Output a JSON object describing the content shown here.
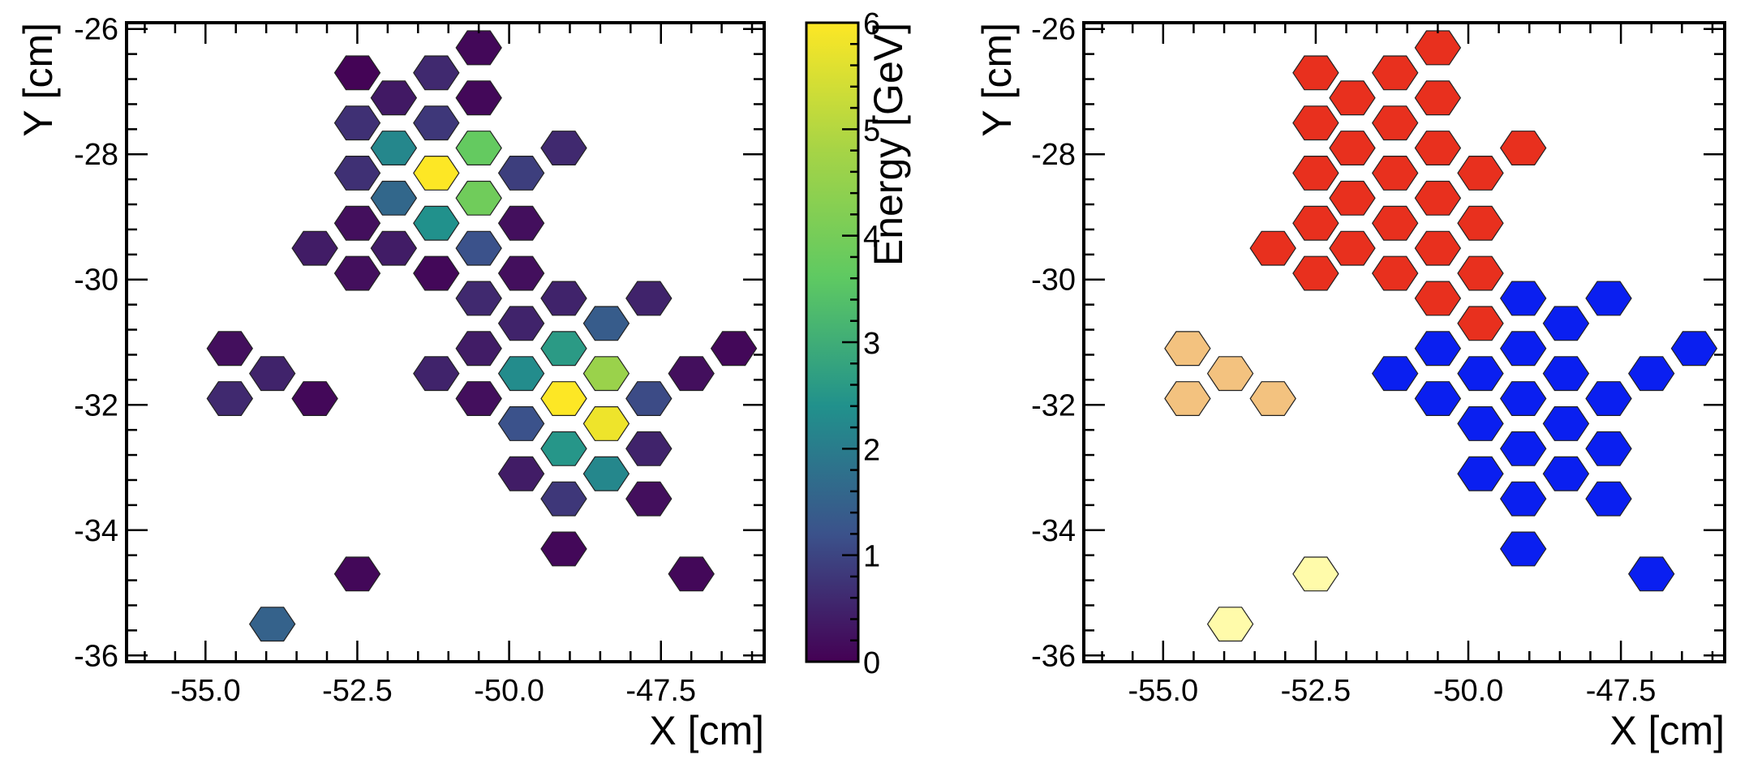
{
  "chart_data": [
    {
      "type": "scatter",
      "marker": "hexagon",
      "title": "",
      "xlabel": "X [cm]",
      "ylabel": "Y [cm]",
      "xlim": [
        -56.3,
        -45.8
      ],
      "ylim": [
        -36.1,
        -25.9
      ],
      "xticks": [
        -55.0,
        -52.5,
        -50.0,
        -47.5
      ],
      "xtick_labels": [
        "-55.0",
        "-52.5",
        "-50.0",
        "-47.5"
      ],
      "yticks": [
        -26,
        -28,
        -30,
        -32,
        -34,
        -36
      ],
      "ytick_labels": [
        "-26",
        "-28",
        "-30",
        "-32",
        "-34",
        "-36"
      ],
      "colorbar": {
        "label": "Energy [GeV]",
        "range": [
          0,
          6
        ],
        "ticks": [
          0,
          1,
          2,
          3,
          4,
          5,
          6
        ],
        "tick_labels": [
          "0",
          "1",
          "2",
          "3",
          "4",
          "5",
          "6"
        ],
        "colormap": [
          "#440154",
          "#3b528b",
          "#21918c",
          "#5ec962",
          "#a6d446",
          "#fde725"
        ]
      },
      "series": [
        {
          "x": [
            -50.5,
            -52.5,
            -51.2,
            -51.9,
            -50.5,
            -52.5,
            -51.2,
            -51.9,
            -50.5,
            -49.1,
            -52.5,
            -51.2,
            -49.8,
            -51.9,
            -50.5,
            -52.5,
            -51.2,
            -49.8,
            -53.2,
            -51.9,
            -50.5,
            -52.5,
            -51.2,
            -49.8,
            -50.5,
            -49.1,
            -47.7,
            -49.8,
            -48.4,
            -54.6,
            -50.5,
            -49.1,
            -46.3,
            -53.9,
            -51.2,
            -49.8,
            -48.4,
            -47.0,
            -54.6,
            -50.5,
            -49.1,
            -53.2,
            -47.7,
            -49.8,
            -48.4,
            -49.1,
            -47.7,
            -49.8,
            -48.4,
            -49.1,
            -47.7,
            -49.1,
            -52.5,
            -47.0,
            -53.9
          ],
          "y": [
            -26.3,
            -26.7,
            -26.7,
            -27.1,
            -27.1,
            -27.5,
            -27.5,
            -27.9,
            -27.9,
            -27.9,
            -28.3,
            -28.3,
            -28.3,
            -28.7,
            -28.7,
            -29.1,
            -29.1,
            -29.1,
            -29.5,
            -29.5,
            -29.5,
            -29.9,
            -29.9,
            -29.9,
            -30.3,
            -30.3,
            -30.3,
            -30.7,
            -30.7,
            -31.1,
            -31.1,
            -31.1,
            -31.1,
            -31.5,
            -31.5,
            -31.5,
            -31.5,
            -31.5,
            -31.9,
            -31.9,
            -31.9,
            -31.9,
            -31.9,
            -32.3,
            -32.3,
            -32.7,
            -32.7,
            -33.1,
            -33.1,
            -33.5,
            -33.5,
            -34.3,
            -34.7,
            -34.7,
            -35.5
          ],
          "energy": [
            0.1,
            0.05,
            0.6,
            0.35,
            0.1,
            0.7,
            0.8,
            2.2,
            3.7,
            0.6,
            0.7,
            6.0,
            0.9,
            1.6,
            3.9,
            0.2,
            2.4,
            0.2,
            0.4,
            0.4,
            1.2,
            0.2,
            0.1,
            0.2,
            0.6,
            0.5,
            0.5,
            0.5,
            1.4,
            0.2,
            0.4,
            2.6,
            0.1,
            0.5,
            0.5,
            2.3,
            4.6,
            0.2,
            0.6,
            0.2,
            6.0,
            0.1,
            1.1,
            1.2,
            5.8,
            2.5,
            0.5,
            0.4,
            2.2,
            0.8,
            0.2,
            0.1,
            0.1,
            0.1,
            1.5
          ]
        }
      ]
    },
    {
      "type": "scatter",
      "marker": "hexagon",
      "title": "",
      "xlabel": "X [cm]",
      "ylabel": "Y [cm]",
      "xlim": [
        -56.3,
        -45.8
      ],
      "ylim": [
        -36.1,
        -25.9
      ],
      "xticks": [
        -55.0,
        -52.5,
        -50.0,
        -47.5
      ],
      "xtick_labels": [
        "-55.0",
        "-52.5",
        "-50.0",
        "-47.5"
      ],
      "yticks": [
        -26,
        -28,
        -30,
        -32,
        -34,
        -36
      ],
      "ytick_labels": [
        "-26",
        "-28",
        "-30",
        "-32",
        "-34",
        "-36"
      ],
      "cluster_colors": {
        "1": "#e8301e",
        "2": "#0a1ff0",
        "3": "#f3c27f",
        "4": "#fffbaa"
      },
      "series": [
        {
          "x": [
            -50.5,
            -52.5,
            -51.2,
            -51.9,
            -50.5,
            -52.5,
            -51.2,
            -51.9,
            -50.5,
            -49.1,
            -52.5,
            -51.2,
            -49.8,
            -51.9,
            -50.5,
            -52.5,
            -51.2,
            -49.8,
            -53.2,
            -51.9,
            -50.5,
            -52.5,
            -51.2,
            -49.8,
            -50.5,
            -49.1,
            -47.7,
            -49.8,
            -48.4,
            -54.6,
            -50.5,
            -49.1,
            -46.3,
            -53.9,
            -51.2,
            -49.8,
            -48.4,
            -47.0,
            -54.6,
            -50.5,
            -49.1,
            -53.2,
            -47.7,
            -49.8,
            -48.4,
            -49.1,
            -47.7,
            -49.8,
            -48.4,
            -49.1,
            -47.7,
            -49.1,
            -52.5,
            -47.0,
            -53.9
          ],
          "y": [
            -26.3,
            -26.7,
            -26.7,
            -27.1,
            -27.1,
            -27.5,
            -27.5,
            -27.9,
            -27.9,
            -27.9,
            -28.3,
            -28.3,
            -28.3,
            -28.7,
            -28.7,
            -29.1,
            -29.1,
            -29.1,
            -29.5,
            -29.5,
            -29.5,
            -29.9,
            -29.9,
            -29.9,
            -30.3,
            -30.3,
            -30.3,
            -30.7,
            -30.7,
            -31.1,
            -31.1,
            -31.1,
            -31.1,
            -31.5,
            -31.5,
            -31.5,
            -31.5,
            -31.5,
            -31.9,
            -31.9,
            -31.9,
            -31.9,
            -31.9,
            -32.3,
            -32.3,
            -32.7,
            -32.7,
            -33.1,
            -33.1,
            -33.5,
            -33.5,
            -34.3,
            -34.7,
            -34.7,
            -35.5
          ],
          "cluster": [
            1,
            1,
            1,
            1,
            1,
            1,
            1,
            1,
            1,
            1,
            1,
            1,
            1,
            1,
            1,
            1,
            1,
            1,
            1,
            1,
            1,
            1,
            1,
            1,
            1,
            2,
            2,
            1,
            2,
            3,
            2,
            2,
            2,
            3,
            2,
            2,
            2,
            2,
            3,
            2,
            2,
            3,
            2,
            2,
            2,
            2,
            2,
            2,
            2,
            2,
            2,
            2,
            4,
            2,
            4
          ]
        }
      ]
    }
  ]
}
